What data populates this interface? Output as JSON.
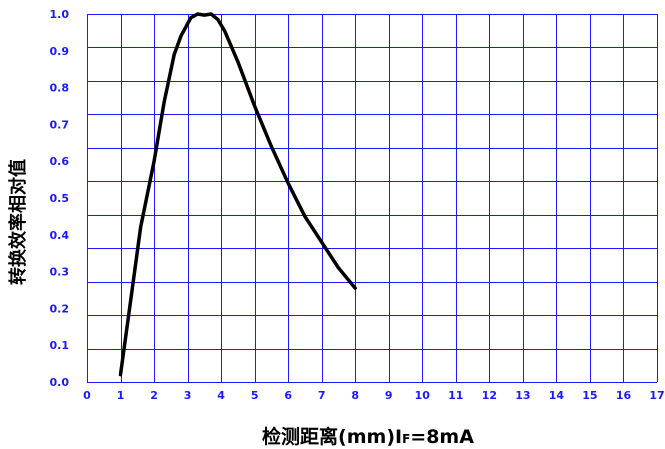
{
  "chart_data": {
    "type": "line",
    "title": "",
    "xlabel_parts": [
      "检测距离(mm)I",
      "F",
      "=8mA"
    ],
    "ylabel": "转换效率相对值",
    "xlim": [
      0,
      17
    ],
    "ylim": [
      0,
      1.0
    ],
    "x_ticks": [
      "0",
      "1",
      "2",
      "3",
      "4",
      "5",
      "6",
      "7",
      "8",
      "9",
      "10",
      "11",
      "12",
      "13",
      "14",
      "15",
      "16",
      "17"
    ],
    "y_ticks": [
      "0.0",
      "0.1",
      "0.2",
      "0.3",
      "0.4",
      "0.5",
      "0.6",
      "0.7",
      "0.8",
      "0.9",
      "1.0"
    ],
    "grid": true,
    "series": [
      {
        "x": [
          1.0,
          1.3,
          1.6,
          2.0,
          2.3,
          2.6,
          2.8,
          3.1,
          3.3,
          3.5,
          3.7,
          3.9,
          4.1,
          4.5,
          5.0,
          5.5,
          6.0,
          6.5,
          7.0,
          7.5,
          8.0
        ],
        "y": [
          0.02,
          0.22,
          0.42,
          0.6,
          0.76,
          0.89,
          0.94,
          0.99,
          1.0,
          0.997,
          1.0,
          0.985,
          0.955,
          0.87,
          0.75,
          0.64,
          0.54,
          0.45,
          0.38,
          0.31,
          0.255
        ]
      }
    ],
    "colors": {
      "grid": "#1a1aff",
      "tick_labels": "#1a1aff",
      "line": "#000000"
    }
  }
}
